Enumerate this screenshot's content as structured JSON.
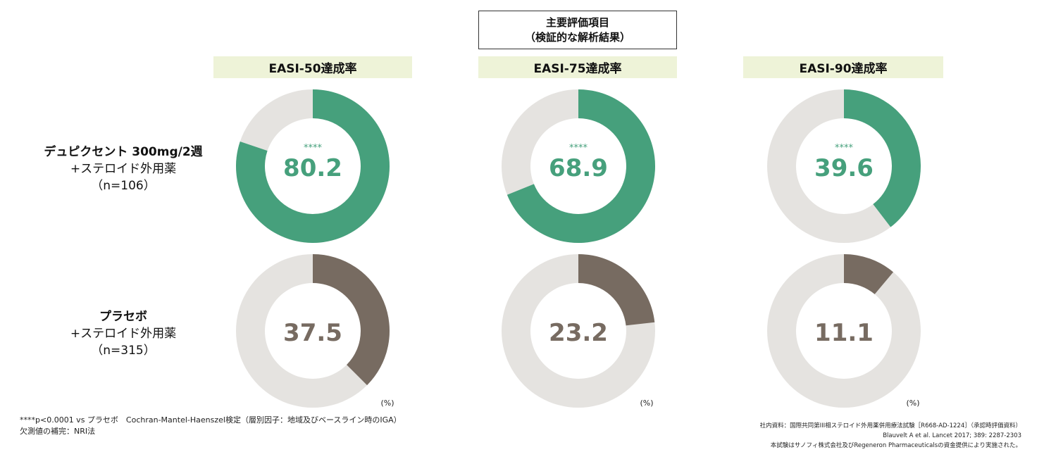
{
  "header": {
    "primary_title_line1": "主要評価項目",
    "primary_title_line2": "（検証的な解析結果）"
  },
  "rows": [
    {
      "line1": "デュピクセント 300mg/2週",
      "line2": "+ステロイド外用薬",
      "line3": "（n=106）"
    },
    {
      "line1": "プラセボ",
      "line2": "+ステロイド外用薬",
      "line3": "（n=315）"
    }
  ],
  "unit": "(%)",
  "colors": {
    "dupixent": "#46a07c",
    "placebo": "#776b61",
    "remainder": "#e5e3e0",
    "header_bg": "#eef3d8"
  },
  "chart_data": {
    "type": "donut",
    "categories": [
      "EASI-50達成率",
      "EASI-75達成率",
      "EASI-90達成率"
    ],
    "series": [
      {
        "name": "デュピクセント 300mg/2週 +ステロイド外用薬",
        "values": [
          80.2,
          68.9,
          39.6
        ],
        "significance": "****"
      },
      {
        "name": "プラセボ +ステロイド外用薬",
        "values": [
          37.5,
          23.2,
          11.1
        ],
        "significance": ""
      }
    ],
    "max": 100
  },
  "notes": {
    "line1": "****p<0.0001 vs プラセボ　Cochran-Mantel-Haenszel検定（層別因子：地域及びベースライン時のIGA）",
    "line2": "欠測値の補完：NRI法"
  },
  "source": {
    "line1": "社内資料：国際共同第III相ステロイド外用薬併用療法試験［R668-AD-1224］（承認時評価資料）",
    "line2": "Blauvelt A et al. Lancet 2017; 389: 2287-2303",
    "line3": "本試験はサノフィ株式会社及びRegeneron Pharmaceuticalsの資金提供により実施された。"
  }
}
